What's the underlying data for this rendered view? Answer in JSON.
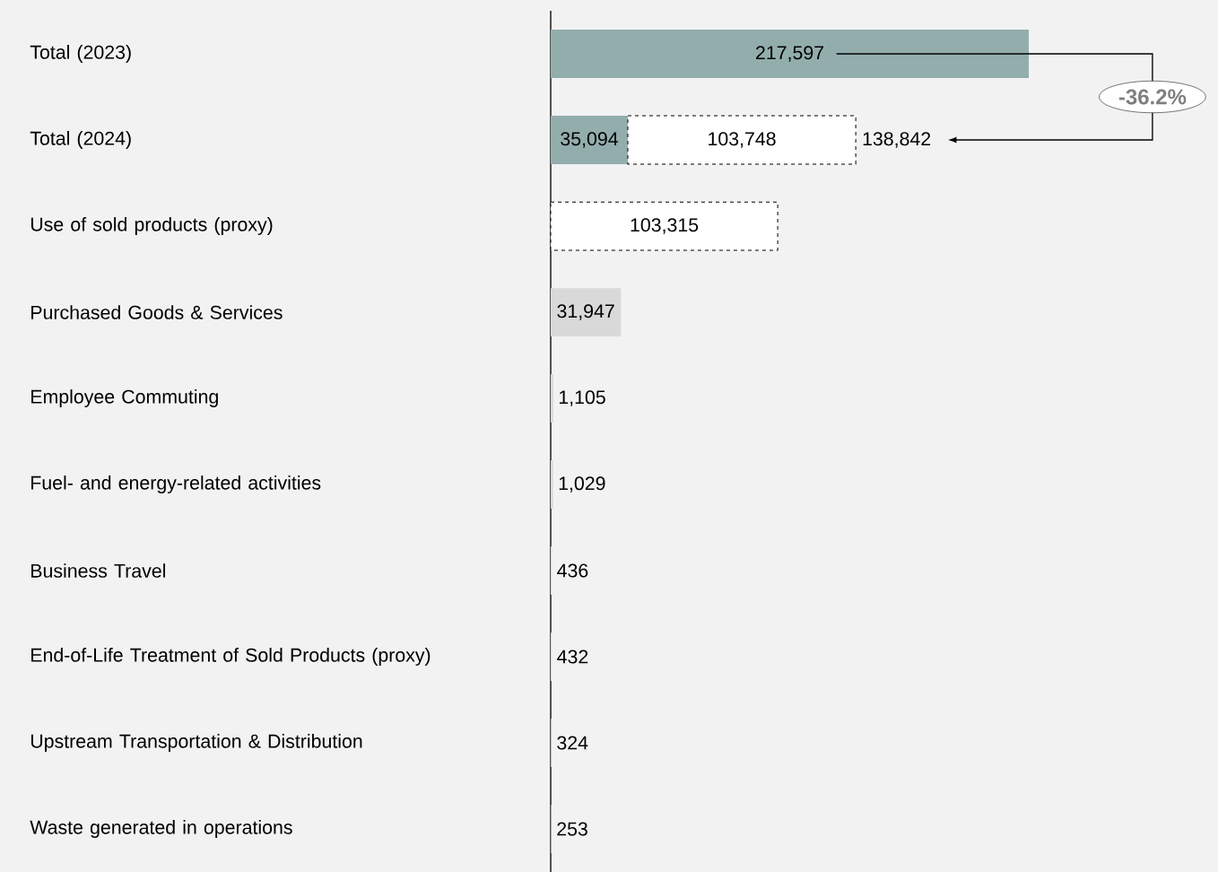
{
  "chart_data": {
    "type": "bar",
    "orientation": "horizontal",
    "stacked": true,
    "categories": [
      "Total (2023)",
      "Total (2024)",
      "Use of sold products (proxy)",
      "Purchased Goods & Services",
      "Employee Commuting",
      "Fuel- and energy-related activities",
      "Business Travel",
      "End-of-Life Treatment of Sold Products (proxy)",
      "Upstream Transportation & Distribution",
      "Waste generated in operations"
    ],
    "tick_labels": "y",
    "series": [
      {
        "color": "#93adad",
        "values": [
          217597,
          35094,
          null,
          null,
          null,
          null,
          null,
          null,
          null,
          null
        ],
        "value_labels": [
          "217,597",
          "35,094",
          null,
          null,
          null,
          null,
          null,
          null,
          null,
          null
        ]
      },
      {
        "color": "#ffffff",
        "line_style": "dashed",
        "values": [
          null,
          103748,
          103315,
          null,
          null,
          null,
          null,
          null,
          null,
          null
        ],
        "value_labels": [
          null,
          "103,748",
          "103,315",
          null,
          null,
          null,
          null,
          null,
          null,
          null
        ]
      },
      {
        "color": "#d9d9d9",
        "values": [
          null,
          null,
          null,
          31947,
          1105,
          1029,
          436,
          432,
          324,
          253
        ],
        "value_labels": [
          null,
          null,
          null,
          "31,947",
          "1,105",
          "1,029",
          "436",
          "432",
          "324",
          "253"
        ]
      }
    ],
    "annotations": [
      {
        "text": "138,842",
        "x": 138842,
        "y": "Total (2024)"
      },
      "-36.2%"
    ]
  }
}
